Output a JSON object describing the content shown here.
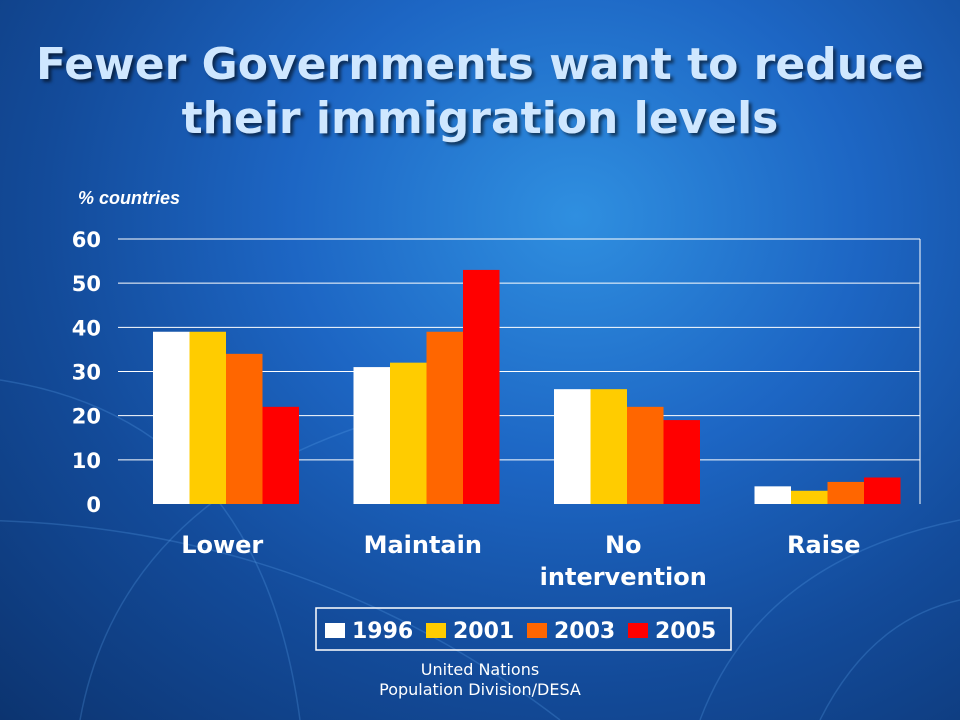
{
  "title_line1": "Fewer Governments want to reduce",
  "title_line2": "their immigration levels",
  "footer_line1": "United Nations",
  "footer_line2": "Population Division/DESA",
  "chart_data": {
    "type": "bar",
    "title": "Fewer Governments want to reduce their immigration levels",
    "ylabel": "% countries",
    "xlabel": "",
    "categories": [
      [
        "Lower"
      ],
      [
        "Maintain"
      ],
      [
        "No",
        "intervention"
      ],
      [
        "Raise"
      ]
    ],
    "series": [
      {
        "name": "1996",
        "color": "#ffffff",
        "values": [
          39,
          31,
          26,
          4
        ]
      },
      {
        "name": "2001",
        "color": "#ffcc00",
        "values": [
          39,
          32,
          26,
          3
        ]
      },
      {
        "name": "2003",
        "color": "#ff6600",
        "values": [
          34,
          39,
          22,
          5
        ]
      },
      {
        "name": "2005",
        "color": "#ff0000",
        "values": [
          22,
          53,
          19,
          6
        ]
      }
    ],
    "ylim": [
      0,
      60
    ],
    "yticks": [
      0,
      10,
      20,
      30,
      40,
      50,
      60
    ],
    "grid": true,
    "legend_position": "bottom"
  }
}
